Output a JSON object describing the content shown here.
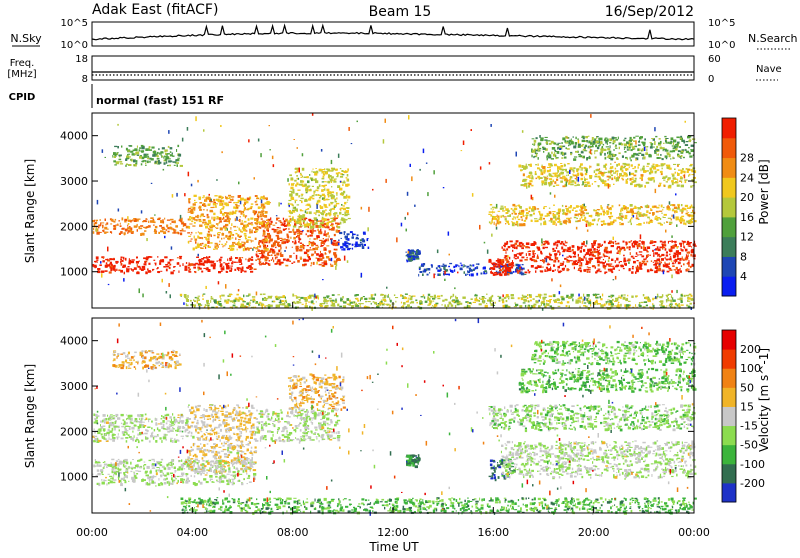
{
  "header": {
    "station": "Adak East (fitACF)",
    "beam": "Beam 15",
    "date": "16/Sep/2012"
  },
  "strips": {
    "nsky_label": "N.Sky",
    "nsky_ticks": [
      "10^5",
      "10^0"
    ],
    "nsearch_label": "N.Search",
    "nsearch_ticks": [
      "10^5",
      "10^0"
    ],
    "freq_label": "Freq.",
    "freq_unit": "[MHz]",
    "freq_ticks": [
      "18",
      "8"
    ],
    "nave_label": "Nave",
    "nave_ticks": [
      "60",
      "0"
    ],
    "cpid_label": "CPID",
    "cpid_text": "normal (fast) 151 RF"
  },
  "chart_data": [
    {
      "type": "heatmap",
      "name": "Power panel",
      "ylabel": "Slant Range [km]",
      "xlim": [
        0,
        24
      ],
      "ylim": [
        200,
        4500
      ],
      "yticks": [
        "1000",
        "2000",
        "3000",
        "4000"
      ],
      "colorbar_label": "Power [dB]",
      "colorbar_ticks": [
        "4",
        "8",
        "12",
        "16",
        "20",
        "24",
        "28"
      ],
      "colorscale": [
        "#0a1ef0",
        "#1e46b4",
        "#3c7d5a",
        "#50a03c",
        "#b4c83c",
        "#f0c81e",
        "#f08c14",
        "#f05a0a",
        "#f01e00"
      ],
      "bands": [
        {
          "x": [
            0.0,
            6.5
          ],
          "y": [
            1000,
            1350
          ],
          "level": 0.97
        },
        {
          "x": [
            6.5,
            9.8
          ],
          "y": [
            1150,
            2200
          ],
          "level": 0.85
        },
        {
          "x": [
            0.0,
            3.8
          ],
          "y": [
            1850,
            2200
          ],
          "level": 0.78
        },
        {
          "x": [
            3.8,
            7.0
          ],
          "y": [
            1500,
            2700
          ],
          "level": 0.7
        },
        {
          "x": [
            0.8,
            3.5
          ],
          "y": [
            3350,
            3800
          ],
          "level": 0.4
        },
        {
          "x": [
            7.8,
            10.2
          ],
          "y": [
            2000,
            3300
          ],
          "level": 0.55
        },
        {
          "x": [
            9.8,
            11.0
          ],
          "y": [
            1500,
            1900
          ],
          "level": 0.12
        },
        {
          "x": [
            12.5,
            13.0
          ],
          "y": [
            1250,
            1500
          ],
          "level": 0.2
        },
        {
          "x": [
            13.0,
            17.2
          ],
          "y": [
            950,
            1200
          ],
          "level": 0.15
        },
        {
          "x": [
            15.8,
            16.6
          ],
          "y": [
            950,
            1300
          ],
          "level": 0.95
        },
        {
          "x": [
            16.3,
            24.0
          ],
          "y": [
            1000,
            1700
          ],
          "level": 0.95
        },
        {
          "x": [
            15.8,
            24.0
          ],
          "y": [
            2050,
            2500
          ],
          "level": 0.62
        },
        {
          "x": [
            17.0,
            24.0
          ],
          "y": [
            2900,
            3400
          ],
          "level": 0.58
        },
        {
          "x": [
            17.5,
            24.0
          ],
          "y": [
            3500,
            4000
          ],
          "level": 0.4
        },
        {
          "x": [
            3.5,
            24.0
          ],
          "y": [
            220,
            520
          ],
          "level": 0.5
        }
      ]
    },
    {
      "type": "heatmap",
      "name": "Velocity panel",
      "ylabel": "Slant Range [km]",
      "xlabel": "Time UT",
      "xlim": [
        0,
        24
      ],
      "ylim": [
        200,
        4500
      ],
      "yticks": [
        "1000",
        "2000",
        "3000",
        "4000"
      ],
      "xticks": [
        "00:00",
        "04:00",
        "08:00",
        "12:00",
        "16:00",
        "20:00",
        "00:00"
      ],
      "colorbar_label": "Velocity [m s^-1]",
      "colorbar_ticks": [
        "200",
        "100",
        "50",
        "15",
        "-15",
        "-50",
        "-100",
        "-200"
      ],
      "colorscale": [
        "#1e32c8",
        "#326e50",
        "#3cb43c",
        "#8cdc50",
        "#c8c8c8",
        "#f0b428",
        "#f08214",
        "#f03c00",
        "#e60000"
      ],
      "bands": [
        {
          "x": [
            0.0,
            6.5
          ],
          "y": [
            850,
            1400
          ],
          "level": 0.45
        },
        {
          "x": [
            0.0,
            3.8
          ],
          "y": [
            1800,
            2400
          ],
          "level": 0.45
        },
        {
          "x": [
            3.8,
            6.5
          ],
          "y": [
            1100,
            2600
          ],
          "level": 0.55
        },
        {
          "x": [
            6.5,
            9.8
          ],
          "y": [
            1800,
            2500
          ],
          "level": 0.45
        },
        {
          "x": [
            0.8,
            3.5
          ],
          "y": [
            3400,
            3800
          ],
          "level": 0.6
        },
        {
          "x": [
            7.8,
            10.0
          ],
          "y": [
            2500,
            3300
          ],
          "level": 0.62
        },
        {
          "x": [
            12.5,
            13.0
          ],
          "y": [
            1250,
            1500
          ],
          "level": 0.2
        },
        {
          "x": [
            15.8,
            16.8
          ],
          "y": [
            950,
            1400
          ],
          "level": 0.15
        },
        {
          "x": [
            16.3,
            24.0
          ],
          "y": [
            1000,
            1800
          ],
          "level": 0.45
        },
        {
          "x": [
            15.8,
            24.0
          ],
          "y": [
            2050,
            2600
          ],
          "level": 0.4
        },
        {
          "x": [
            17.0,
            24.0
          ],
          "y": [
            2900,
            3400
          ],
          "level": 0.32
        },
        {
          "x": [
            17.5,
            24.0
          ],
          "y": [
            3500,
            4000
          ],
          "level": 0.35
        },
        {
          "x": [
            3.5,
            24.0
          ],
          "y": [
            220,
            550
          ],
          "level": 0.3
        }
      ]
    }
  ]
}
